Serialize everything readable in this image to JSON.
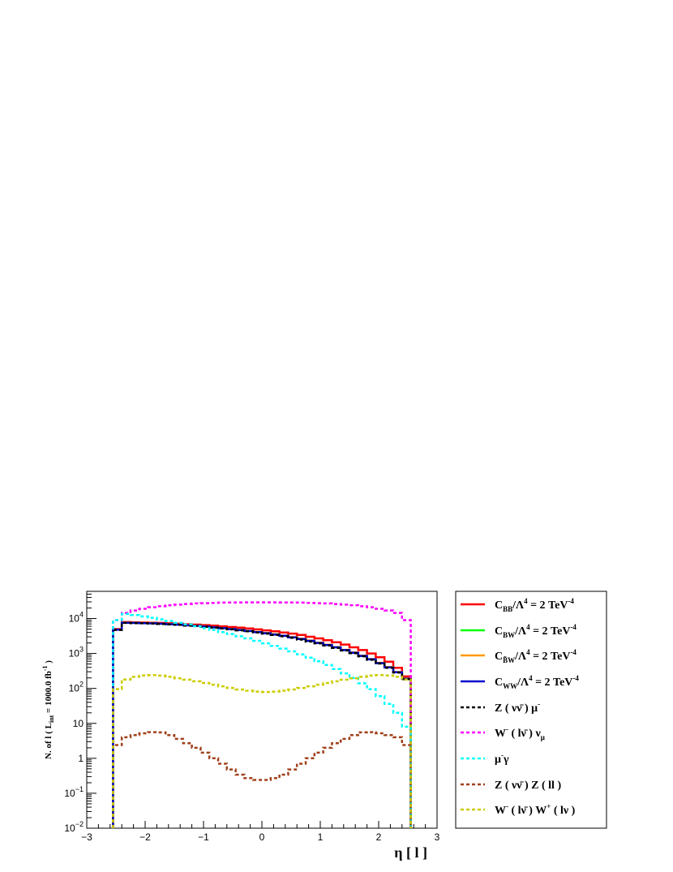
{
  "chart_data": {
    "type": "line",
    "style": "step-histogram",
    "x_scale": "linear",
    "y_scale": "log",
    "xlim": [
      -3,
      3
    ],
    "ylim": [
      0.01,
      60000
    ],
    "grid": false,
    "legend_placement": "right",
    "xlabel": "η [ l ]",
    "ylabel": "N. of l ( L_int = 1000.0 fb^-1 )",
    "xticks": [
      -3,
      -2,
      -1,
      0,
      1,
      2,
      3
    ],
    "xtick_labels": [
      "−3",
      "−2",
      "−1",
      "0",
      "1",
      "2",
      "3"
    ],
    "yticks": [
      0.01,
      0.1,
      1,
      10,
      100,
      1000,
      10000
    ],
    "ytick_labels": [
      {
        "base": "10",
        "exp": "−2"
      },
      {
        "base": "10",
        "exp": "−1"
      },
      {
        "base": "1",
        "exp": ""
      },
      {
        "base": "10",
        "exp": ""
      },
      {
        "base": "10",
        "exp": "2"
      },
      {
        "base": "10",
        "exp": "3"
      },
      {
        "base": "10",
        "exp": "4"
      }
    ],
    "bin_edges": [
      -2.55,
      -2.4,
      -2.25,
      -2.1,
      -1.95,
      -1.8,
      -1.65,
      -1.5,
      -1.35,
      -1.2,
      -1.05,
      -0.9,
      -0.75,
      -0.6,
      -0.45,
      -0.3,
      -0.15,
      0.0,
      0.15,
      0.3,
      0.45,
      0.6,
      0.75,
      0.9,
      1.05,
      1.2,
      1.35,
      1.5,
      1.65,
      1.8,
      1.95,
      2.1,
      2.25,
      2.4,
      2.55
    ],
    "series": [
      {
        "name": "C_BB/Λ^4 = 2 TeV^-4",
        "color": "#ff0000",
        "dash": "solid",
        "values": [
          5000,
          7900,
          7800,
          7700,
          7600,
          7500,
          7300,
          7100,
          6900,
          6700,
          6500,
          6300,
          6000,
          5700,
          5500,
          5200,
          4900,
          4600,
          4300,
          4000,
          3700,
          3400,
          3000,
          2700,
          2400,
          2100,
          1800,
          1500,
          1250,
          1000,
          780,
          580,
          390,
          220
        ]
      },
      {
        "name": "C_BW/Λ^4 = 2 TeV^-4",
        "color": "#00ff00",
        "dash": "solid",
        "values": [
          4800,
          7600,
          7500,
          7400,
          7300,
          7100,
          6900,
          6700,
          6400,
          6200,
          5900,
          5600,
          5300,
          5000,
          4700,
          4400,
          4100,
          3800,
          3500,
          3200,
          2900,
          2600,
          2300,
          2000,
          1750,
          1500,
          1250,
          1050,
          850,
          680,
          530,
          400,
          290,
          190
        ]
      },
      {
        "name": "C_B̃W/Λ^4 = 2 TeV^-4",
        "color": "#ff9900",
        "dash": "solid",
        "values": [
          4850,
          7650,
          7550,
          7450,
          7350,
          7150,
          6950,
          6750,
          6450,
          6250,
          5950,
          5650,
          5350,
          5050,
          4750,
          4450,
          4150,
          3850,
          3550,
          3250,
          2950,
          2650,
          2350,
          2050,
          1780,
          1520,
          1270,
          1070,
          870,
          690,
          540,
          410,
          295,
          195
        ]
      },
      {
        "name": "C_WW/Λ^4 = 2 TeV^-4",
        "color": "#0000cc",
        "dash": "solid",
        "values": [
          4800,
          7600,
          7500,
          7400,
          7300,
          7100,
          6900,
          6700,
          6400,
          6200,
          5900,
          5600,
          5300,
          5000,
          4700,
          4400,
          4100,
          3800,
          3500,
          3200,
          2900,
          2600,
          2300,
          2000,
          1750,
          1500,
          1250,
          1050,
          850,
          680,
          530,
          400,
          290,
          190
        ]
      },
      {
        "name": "Z ( νν̄ ) μ^-",
        "color": "#000000",
        "dash": "dashed",
        "values": [
          4700,
          7500,
          7400,
          7300,
          7200,
          7000,
          6800,
          6600,
          6300,
          6100,
          5800,
          5500,
          5200,
          4900,
          4600,
          4300,
          4000,
          3700,
          3400,
          3100,
          2800,
          2500,
          2200,
          1950,
          1700,
          1450,
          1220,
          1020,
          830,
          660,
          515,
          390,
          285,
          185
        ]
      },
      {
        "name": "W^- ( lν̄ ) ν_μ",
        "color": "#ff00ff",
        "dash": "dashed",
        "values": [
          9000,
          14500,
          17000,
          19000,
          21000,
          22500,
          24000,
          25000,
          26000,
          27000,
          27500,
          28000,
          28500,
          28700,
          28900,
          29000,
          29000,
          29000,
          29000,
          28900,
          28700,
          28500,
          28000,
          27500,
          27000,
          26000,
          25000,
          24000,
          22500,
          21000,
          19000,
          17000,
          14500,
          9000
        ]
      },
      {
        "name": "μ^-γ",
        "color": "#00ffff",
        "dash": "dashed",
        "values": [
          9000,
          13500,
          12500,
          11500,
          10500,
          9500,
          8500,
          7600,
          6800,
          6000,
          5300,
          4700,
          4100,
          3600,
          3100,
          2700,
          2300,
          1950,
          1650,
          1380,
          1150,
          940,
          760,
          600,
          470,
          360,
          270,
          200,
          140,
          95,
          60,
          36,
          20,
          8
        ]
      },
      {
        "name": "Z ( νν̄ ) Z ( ll )",
        "color": "#a0401a",
        "dash": "dashed",
        "values": [
          2.4,
          4.0,
          4.6,
          5.2,
          5.6,
          5.5,
          4.6,
          3.6,
          2.7,
          2.0,
          1.45,
          1.0,
          0.7,
          0.48,
          0.34,
          0.27,
          0.24,
          0.24,
          0.27,
          0.34,
          0.48,
          0.7,
          1.0,
          1.45,
          2.0,
          2.7,
          3.6,
          4.6,
          5.5,
          5.6,
          5.2,
          4.6,
          4.0,
          2.4
        ]
      },
      {
        "name": "W^- ( lν̄ ) W^+ ( lν )",
        "color": "#cccc00",
        "dash": "dashed",
        "values": [
          95,
          180,
          215,
          235,
          240,
          232,
          215,
          195,
          178,
          160,
          143,
          128,
          115,
          103,
          93,
          86,
          81,
          79,
          81,
          86,
          93,
          103,
          115,
          128,
          143,
          160,
          178,
          195,
          215,
          232,
          240,
          235,
          215,
          180
        ]
      }
    ]
  },
  "legend": [
    {
      "base": "C",
      "sub": "BB",
      "mid": "/Λ",
      "sup1": "4",
      "tail": " = 2 TeV",
      "sup2": "-4"
    },
    {
      "base": "C",
      "sub": "BW",
      "mid": "/Λ",
      "sup1": "4",
      "tail": " = 2 TeV",
      "sup2": "-4"
    },
    {
      "base": "C",
      "sub": "B̃W",
      "mid": "/Λ",
      "sup1": "4",
      "tail": " = 2 TeV",
      "sup2": "-4"
    },
    {
      "base": "C",
      "sub": "WW",
      "mid": "/Λ",
      "sup1": "4",
      "tail": " = 2 TeV",
      "sup2": "-4"
    }
  ],
  "legend_plain": {
    "zmu": {
      "a": "Z (  νν̄ )  μ",
      "sup": "-"
    },
    "wnu": {
      "a": "W",
      "sup": "-",
      "b": " ( lν̄ )  ν",
      "sub": "μ"
    },
    "mugamma": {
      "a": "μ",
      "sup": "-",
      "b": "γ"
    },
    "zz": {
      "a": "Z (  νν̄ ) Z ( ll )"
    },
    "ww": {
      "a": "W",
      "sup1": "-",
      "b": " ( lν̄ ) W",
      "sup2": "+",
      "c": " ( lν )"
    }
  },
  "ylabel_parts": {
    "a": "N. of l ( L",
    "sub": "int",
    "b": " = 1000.0 fb",
    "sup": "-1",
    "c": " )"
  },
  "xlabel_text": "η [ l ]"
}
